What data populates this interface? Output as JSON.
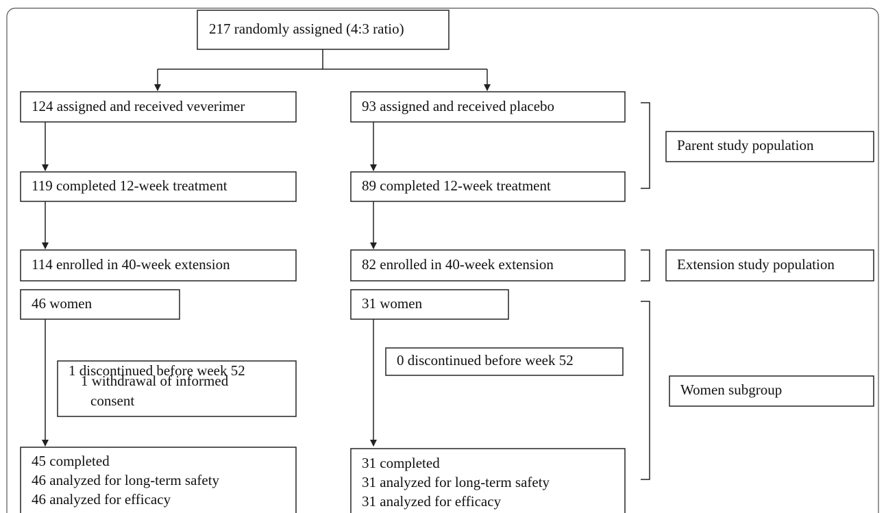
{
  "nodes": [
    {
      "lines": [
        "217 randomly assigned (4:3 ratio)"
      ]
    },
    {
      "lines": [
        "124 assigned and received veverimer"
      ]
    },
    {
      "lines": [
        "93 assigned and received placebo"
      ]
    },
    {
      "lines": [
        "119 completed 12-week treatment"
      ]
    },
    {
      "lines": [
        "89 completed 12-week treatment"
      ]
    },
    {
      "lines": [
        "114 enrolled in 40-week extension"
      ]
    },
    {
      "lines": [
        "82 enrolled in 40-week extension"
      ]
    },
    {
      "lines": [
        "46 women"
      ]
    },
    {
      "lines": [
        "31 women"
      ]
    },
    {
      "lines": [
        "1 discontinued before week 52",
        "1 withdrawal of informed",
        "consent"
      ]
    },
    {
      "lines": [
        "0 discontinued before week 52"
      ]
    },
    {
      "lines": [
        "45 completed",
        "46 analyzed for long-term safety",
        "46 analyzed for efficacy"
      ]
    },
    {
      "lines": [
        "31 completed",
        "31 analyzed for long-term safety",
        "31 analyzed for efficacy"
      ]
    }
  ],
  "labels": [
    "Parent study population",
    "Extension study population",
    "Women subgroup"
  ]
}
